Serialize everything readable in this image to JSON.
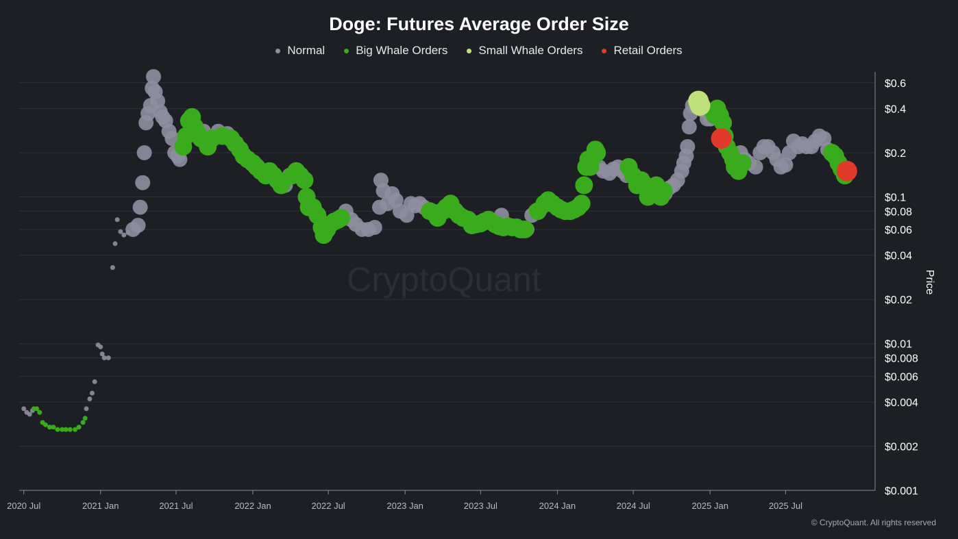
{
  "chart_data": {
    "type": "scatter",
    "title": "Doge: Futures Average Order Size",
    "ylabel": "Price",
    "yscale": "log",
    "ylim": [
      0.001,
      0.75
    ],
    "xlim": [
      "2020-06-20",
      "2026-01-20"
    ],
    "grid": true,
    "legend_placement": "top-center",
    "x_ticks": [
      {
        "label": "2020 Jul",
        "date": "2020-07-01"
      },
      {
        "label": "2021 Jan",
        "date": "2021-01-01"
      },
      {
        "label": "2021 Jul",
        "date": "2021-07-01"
      },
      {
        "label": "2022 Jan",
        "date": "2022-01-01"
      },
      {
        "label": "2022 Jul",
        "date": "2022-07-01"
      },
      {
        "label": "2023 Jan",
        "date": "2023-01-01"
      },
      {
        "label": "2023 Jul",
        "date": "2023-07-01"
      },
      {
        "label": "2024 Jan",
        "date": "2024-01-01"
      },
      {
        "label": "2024 Jul",
        "date": "2024-07-01"
      },
      {
        "label": "2025 Jan",
        "date": "2025-01-01"
      },
      {
        "label": "2025 Jul",
        "date": "2025-07-01"
      }
    ],
    "y_ticks": [
      {
        "label": "$0.6",
        "value": 0.6
      },
      {
        "label": "$0.4",
        "value": 0.4
      },
      {
        "label": "$0.2",
        "value": 0.2
      },
      {
        "label": "$0.1",
        "value": 0.1
      },
      {
        "label": "$0.08",
        "value": 0.08
      },
      {
        "label": "$0.06",
        "value": 0.06
      },
      {
        "label": "$0.04",
        "value": 0.04
      },
      {
        "label": "$0.02",
        "value": 0.02
      },
      {
        "label": "$0.01",
        "value": 0.01
      },
      {
        "label": "$0.008",
        "value": 0.008
      },
      {
        "label": "$0.006",
        "value": 0.006
      },
      {
        "label": "$0.004",
        "value": 0.004
      },
      {
        "label": "$0.002",
        "value": 0.002
      },
      {
        "label": "$0.001",
        "value": 0.001
      }
    ],
    "series": [
      {
        "name": "Normal",
        "color": "#8e8ea0",
        "points": [
          [
            "2020-07-01",
            0.0036
          ],
          [
            "2020-07-08",
            0.0034
          ],
          [
            "2020-07-15",
            0.0033
          ],
          [
            "2020-07-22",
            0.0035
          ],
          [
            "2020-11-28",
            0.0036
          ],
          [
            "2020-12-06",
            0.0042
          ],
          [
            "2020-12-12",
            0.0046
          ],
          [
            "2020-12-18",
            0.0055
          ],
          [
            "2020-12-26",
            0.0098
          ],
          [
            "2021-01-01",
            0.0095
          ],
          [
            "2021-01-05",
            0.0085
          ],
          [
            "2021-01-10",
            0.008
          ],
          [
            "2021-01-20",
            0.008
          ],
          [
            "2021-01-30",
            0.033
          ],
          [
            "2021-02-05",
            0.048
          ],
          [
            "2021-02-10",
            0.07
          ],
          [
            "2021-02-18",
            0.058
          ],
          [
            "2021-02-26",
            0.055
          ],
          [
            "2021-03-08",
            0.057
          ],
          [
            "2021-03-20",
            0.06
          ],
          [
            "2021-04-01",
            0.064
          ],
          [
            "2021-04-06",
            0.085
          ],
          [
            "2021-04-12",
            0.125
          ],
          [
            "2021-04-16",
            0.2
          ],
          [
            "2021-04-20",
            0.32
          ],
          [
            "2021-04-25",
            0.37
          ],
          [
            "2021-05-01",
            0.42
          ],
          [
            "2021-05-05",
            0.55
          ],
          [
            "2021-05-08",
            0.66
          ],
          [
            "2021-05-12",
            0.52
          ],
          [
            "2021-05-18",
            0.45
          ],
          [
            "2021-05-24",
            0.38
          ],
          [
            "2021-05-30",
            0.35
          ],
          [
            "2021-06-06",
            0.33
          ],
          [
            "2021-06-14",
            0.28
          ],
          [
            "2021-06-22",
            0.25
          ],
          [
            "2021-06-28",
            0.2
          ],
          [
            "2021-07-05",
            0.19
          ],
          [
            "2021-07-10",
            0.18
          ],
          [
            "2021-09-05",
            0.28
          ],
          [
            "2021-10-10",
            0.28
          ],
          [
            "2021-11-01",
            0.27
          ],
          [
            "2022-03-20",
            0.12
          ],
          [
            "2022-03-30",
            0.14
          ],
          [
            "2022-08-12",
            0.08
          ],
          [
            "2022-08-25",
            0.07
          ],
          [
            "2022-09-05",
            0.065
          ],
          [
            "2022-09-20",
            0.06
          ],
          [
            "2022-10-05",
            0.06
          ],
          [
            "2022-10-20",
            0.062
          ],
          [
            "2022-11-01",
            0.085
          ],
          [
            "2022-11-04",
            0.13
          ],
          [
            "2022-11-10",
            0.11
          ],
          [
            "2022-11-20",
            0.09
          ],
          [
            "2022-12-01",
            0.105
          ],
          [
            "2022-12-10",
            0.095
          ],
          [
            "2022-12-20",
            0.08
          ],
          [
            "2023-01-05",
            0.075
          ],
          [
            "2023-01-15",
            0.09
          ],
          [
            "2023-01-25",
            0.087
          ],
          [
            "2023-02-05",
            0.09
          ],
          [
            "2023-02-15",
            0.085
          ],
          [
            "2023-08-20",
            0.075
          ],
          [
            "2023-09-01",
            0.065
          ],
          [
            "2023-09-10",
            0.063
          ],
          [
            "2023-10-20",
            0.06
          ],
          [
            "2023-11-01",
            0.075
          ],
          [
            "2023-11-10",
            0.08
          ],
          [
            "2023-11-25",
            0.085
          ],
          [
            "2024-01-05",
            0.085
          ],
          [
            "2024-01-20",
            0.08
          ],
          [
            "2024-04-10",
            0.16
          ],
          [
            "2024-04-20",
            0.15
          ],
          [
            "2024-05-05",
            0.145
          ],
          [
            "2024-05-15",
            0.155
          ],
          [
            "2024-05-25",
            0.16
          ],
          [
            "2024-06-05",
            0.15
          ],
          [
            "2024-06-15",
            0.14
          ],
          [
            "2024-09-15",
            0.105
          ],
          [
            "2024-09-25",
            0.115
          ],
          [
            "2024-10-05",
            0.12
          ],
          [
            "2024-10-15",
            0.13
          ],
          [
            "2024-10-25",
            0.15
          ],
          [
            "2024-10-30",
            0.17
          ],
          [
            "2024-11-05",
            0.19
          ],
          [
            "2024-11-08",
            0.22
          ],
          [
            "2024-11-12",
            0.3
          ],
          [
            "2024-11-15",
            0.37
          ],
          [
            "2024-11-20",
            0.42
          ],
          [
            "2024-12-15",
            0.39
          ],
          [
            "2024-12-25",
            0.34
          ],
          [
            "2025-01-02",
            0.34
          ],
          [
            "2025-01-05",
            0.36
          ],
          [
            "2025-03-15",
            0.2
          ],
          [
            "2025-03-25",
            0.18
          ],
          [
            "2025-04-05",
            0.17
          ],
          [
            "2025-04-20",
            0.16
          ],
          [
            "2025-05-01",
            0.2
          ],
          [
            "2025-05-10",
            0.22
          ],
          [
            "2025-05-20",
            0.22
          ],
          [
            "2025-06-01",
            0.2
          ],
          [
            "2025-06-10",
            0.18
          ],
          [
            "2025-06-20",
            0.16
          ],
          [
            "2025-07-01",
            0.165
          ],
          [
            "2025-07-10",
            0.2
          ],
          [
            "2025-07-20",
            0.24
          ],
          [
            "2025-08-01",
            0.22
          ],
          [
            "2025-08-10",
            0.23
          ],
          [
            "2025-08-20",
            0.22
          ],
          [
            "2025-09-01",
            0.22
          ],
          [
            "2025-09-10",
            0.24
          ],
          [
            "2025-09-20",
            0.26
          ],
          [
            "2025-10-01",
            0.25
          ],
          [
            "2025-10-10",
            0.21
          ]
        ]
      },
      {
        "name": "Big Whale Orders",
        "color": "#3aab1d",
        "points": [
          [
            "2020-07-25",
            0.0036
          ],
          [
            "2020-08-01",
            0.0036
          ],
          [
            "2020-08-08",
            0.0034
          ],
          [
            "2020-08-15",
            0.0029
          ],
          [
            "2020-08-22",
            0.0028
          ],
          [
            "2020-09-01",
            0.0027
          ],
          [
            "2020-09-10",
            0.0027
          ],
          [
            "2020-09-20",
            0.0026
          ],
          [
            "2020-10-01",
            0.0026
          ],
          [
            "2020-10-10",
            0.0026
          ],
          [
            "2020-10-20",
            0.0026
          ],
          [
            "2020-11-01",
            0.0026
          ],
          [
            "2020-11-10",
            0.0027
          ],
          [
            "2020-11-20",
            0.0029
          ],
          [
            "2020-11-25",
            0.0031
          ],
          [
            "2021-07-18",
            0.22
          ],
          [
            "2021-07-25",
            0.26
          ],
          [
            "2021-08-01",
            0.33
          ],
          [
            "2021-08-08",
            0.35
          ],
          [
            "2021-08-15",
            0.3
          ],
          [
            "2021-08-22",
            0.27
          ],
          [
            "2021-08-30",
            0.25
          ],
          [
            "2021-09-15",
            0.22
          ],
          [
            "2021-09-25",
            0.25
          ],
          [
            "2021-10-20",
            0.26
          ],
          [
            "2021-11-10",
            0.25
          ],
          [
            "2021-11-20",
            0.23
          ],
          [
            "2021-12-01",
            0.21
          ],
          [
            "2021-12-10",
            0.19
          ],
          [
            "2021-12-20",
            0.18
          ],
          [
            "2022-01-01",
            0.17
          ],
          [
            "2022-01-10",
            0.16
          ],
          [
            "2022-01-20",
            0.15
          ],
          [
            "2022-02-01",
            0.14
          ],
          [
            "2022-02-10",
            0.15
          ],
          [
            "2022-02-20",
            0.14
          ],
          [
            "2022-03-01",
            0.13
          ],
          [
            "2022-03-10",
            0.12
          ],
          [
            "2022-04-05",
            0.14
          ],
          [
            "2022-04-15",
            0.15
          ],
          [
            "2022-04-25",
            0.14
          ],
          [
            "2022-05-05",
            0.13
          ],
          [
            "2022-05-10",
            0.1
          ],
          [
            "2022-05-15",
            0.085
          ],
          [
            "2022-05-25",
            0.085
          ],
          [
            "2022-06-05",
            0.075
          ],
          [
            "2022-06-15",
            0.062
          ],
          [
            "2022-06-20",
            0.055
          ],
          [
            "2022-06-28",
            0.06
          ],
          [
            "2022-07-05",
            0.065
          ],
          [
            "2022-07-15",
            0.068
          ],
          [
            "2022-07-25",
            0.07
          ],
          [
            "2022-08-01",
            0.072
          ],
          [
            "2023-03-01",
            0.08
          ],
          [
            "2023-03-10",
            0.078
          ],
          [
            "2023-03-20",
            0.072
          ],
          [
            "2023-04-01",
            0.08
          ],
          [
            "2023-04-10",
            0.085
          ],
          [
            "2023-04-20",
            0.09
          ],
          [
            "2023-05-01",
            0.08
          ],
          [
            "2023-05-10",
            0.075
          ],
          [
            "2023-05-20",
            0.072
          ],
          [
            "2023-06-01",
            0.07
          ],
          [
            "2023-06-10",
            0.064
          ],
          [
            "2023-06-20",
            0.065
          ],
          [
            "2023-07-01",
            0.066
          ],
          [
            "2023-07-10",
            0.068
          ],
          [
            "2023-07-20",
            0.07
          ],
          [
            "2023-08-05",
            0.065
          ],
          [
            "2023-08-15",
            0.063
          ],
          [
            "2023-08-25",
            0.062
          ],
          [
            "2023-09-05",
            0.063
          ],
          [
            "2023-09-15",
            0.062
          ],
          [
            "2023-09-25",
            0.062
          ],
          [
            "2023-10-05",
            0.06
          ],
          [
            "2023-10-15",
            0.06
          ],
          [
            "2023-11-15",
            0.08
          ],
          [
            "2023-12-01",
            0.09
          ],
          [
            "2023-12-10",
            0.095
          ],
          [
            "2023-12-20",
            0.09
          ],
          [
            "2024-01-01",
            0.085
          ],
          [
            "2024-01-10",
            0.082
          ],
          [
            "2024-01-20",
            0.08
          ],
          [
            "2024-02-01",
            0.08
          ],
          [
            "2024-02-10",
            0.082
          ],
          [
            "2024-02-20",
            0.085
          ],
          [
            "2024-02-28",
            0.09
          ],
          [
            "2024-03-05",
            0.12
          ],
          [
            "2024-03-10",
            0.16
          ],
          [
            "2024-03-15",
            0.18
          ],
          [
            "2024-03-20",
            0.16
          ],
          [
            "2024-03-28",
            0.19
          ],
          [
            "2024-04-01",
            0.21
          ],
          [
            "2024-04-05",
            0.2
          ],
          [
            "2024-06-20",
            0.16
          ],
          [
            "2024-06-30",
            0.14
          ],
          [
            "2024-07-10",
            0.12
          ],
          [
            "2024-07-20",
            0.13
          ],
          [
            "2024-07-30",
            0.12
          ],
          [
            "2024-08-05",
            0.1
          ],
          [
            "2024-08-15",
            0.11
          ],
          [
            "2024-08-25",
            0.12
          ],
          [
            "2024-09-05",
            0.1
          ],
          [
            "2024-09-12",
            0.11
          ],
          [
            "2025-01-08",
            0.38
          ],
          [
            "2025-01-12",
            0.36
          ],
          [
            "2025-01-18",
            0.4
          ],
          [
            "2025-01-25",
            0.36
          ],
          [
            "2025-02-01",
            0.32
          ],
          [
            "2025-02-05",
            0.26
          ],
          [
            "2025-02-10",
            0.22
          ],
          [
            "2025-02-18",
            0.2
          ],
          [
            "2025-02-25",
            0.18
          ],
          [
            "2025-03-01",
            0.16
          ],
          [
            "2025-03-05",
            0.17
          ],
          [
            "2025-03-10",
            0.15
          ],
          [
            "2025-03-20",
            0.17
          ],
          [
            "2025-10-20",
            0.2
          ],
          [
            "2025-10-28",
            0.19
          ],
          [
            "2025-11-05",
            0.17
          ],
          [
            "2025-11-12",
            0.155
          ],
          [
            "2025-11-20",
            0.14
          ]
        ]
      },
      {
        "name": "Small Whale Orders",
        "color": "#bfe07a",
        "points": [
          [
            "2024-12-04",
            0.45
          ],
          [
            "2024-12-08",
            0.42
          ]
        ]
      },
      {
        "name": "Retail Orders",
        "color": "#e23a2a",
        "points": [
          [
            "2025-01-28",
            0.25
          ],
          [
            "2025-11-25",
            0.15
          ]
        ]
      }
    ],
    "watermark": "CryptoQuant",
    "footer": "© CryptoQuant. All rights reserved"
  }
}
